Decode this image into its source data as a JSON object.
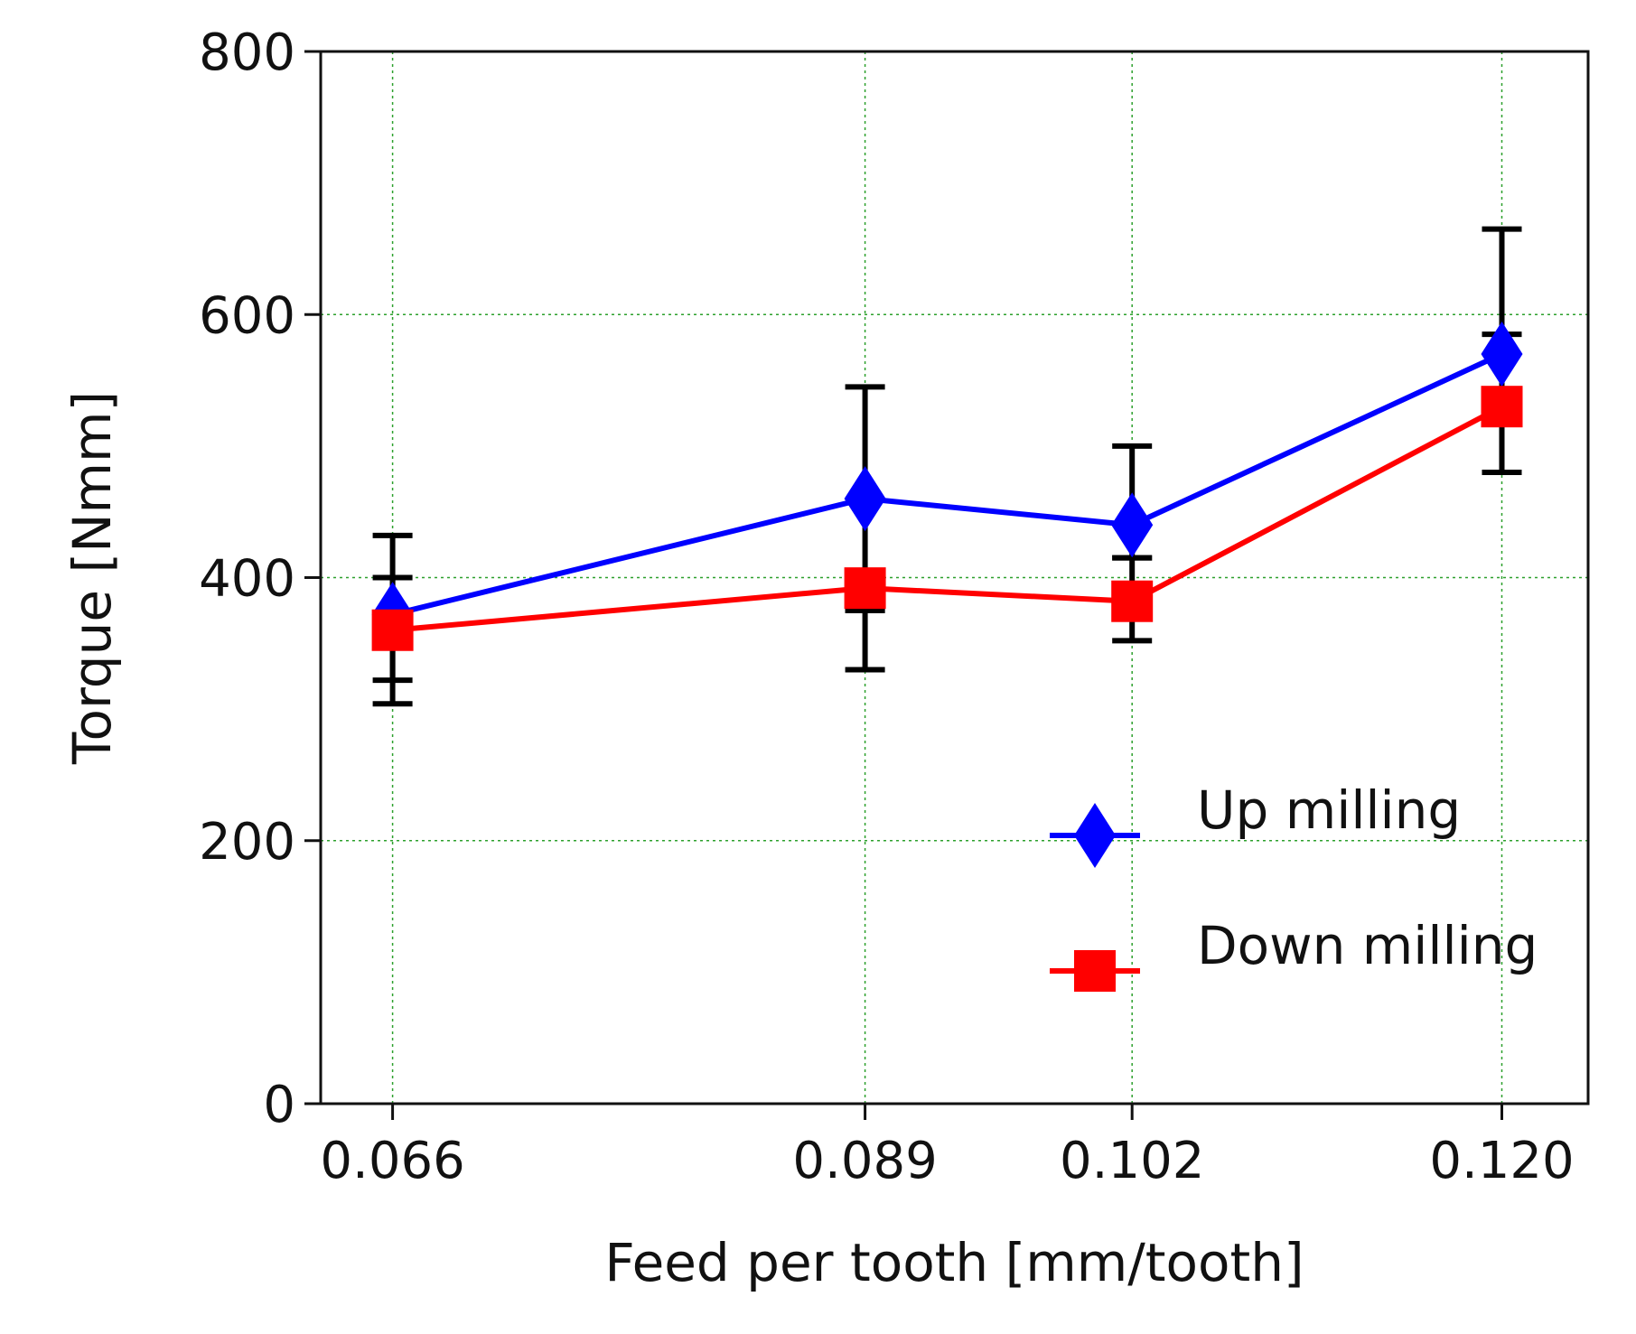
{
  "chart_data": {
    "type": "line",
    "title": "",
    "xlabel": "Feed per tooth [mm/tooth]",
    "ylabel": "Torque [Nmm]",
    "x": [
      0.066,
      0.089,
      0.102,
      0.12
    ],
    "x_tick_labels": [
      "0.066",
      "0.089",
      "0.102",
      "0.120"
    ],
    "xlim": [
      0.0625,
      0.1242
    ],
    "ylim": [
      0,
      800
    ],
    "y_ticks": [
      0,
      200,
      400,
      600,
      800
    ],
    "y_tick_labels": [
      "0",
      "200",
      "400",
      "600",
      "800"
    ],
    "grid": true,
    "legend_position": "lower-right",
    "series": [
      {
        "name": "Up milling",
        "color": "#0000ff",
        "marker": "diamond",
        "values": [
          372,
          460,
          440,
          570
        ],
        "error_low": [
          322,
          375,
          415,
          480
        ],
        "error_high": [
          432,
          545,
          500,
          665
        ]
      },
      {
        "name": "Down milling",
        "color": "#ff0000",
        "marker": "square",
        "values": [
          360,
          392,
          382,
          530
        ],
        "error_low": [
          304,
          330,
          352,
          480
        ],
        "error_high": [
          400,
          375,
          415,
          585
        ]
      }
    ],
    "errorbar_color": "#000000",
    "grid_color": "#2ca02c"
  }
}
